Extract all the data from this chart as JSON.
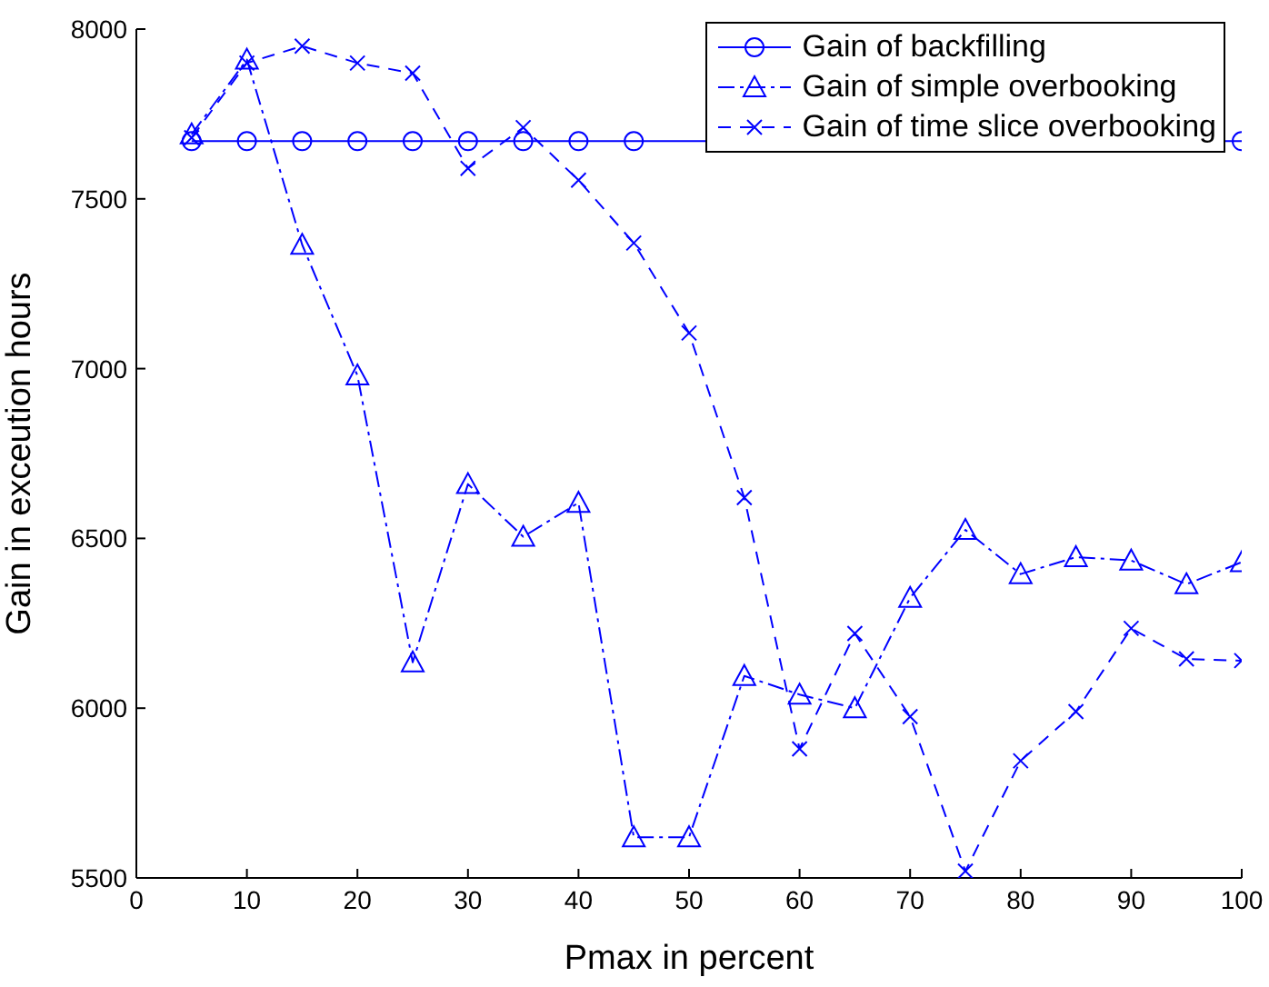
{
  "chart_data": {
    "type": "line",
    "xlabel": "Pmax in percent",
    "ylabel": "Gain in exceution hours",
    "x": [
      5,
      10,
      15,
      20,
      25,
      30,
      35,
      40,
      45,
      50,
      55,
      60,
      65,
      70,
      75,
      80,
      85,
      90,
      95,
      100
    ],
    "xlim": [
      0,
      100
    ],
    "xticks": [
      0,
      10,
      20,
      30,
      40,
      50,
      60,
      70,
      80,
      90,
      100
    ],
    "ylim": [
      5500,
      8000
    ],
    "yticks": [
      5500,
      6000,
      6500,
      7000,
      7500,
      8000
    ],
    "grid": false,
    "legend": "top right",
    "series": [
      {
        "name": "Gain of backfilling",
        "color": "#0000ff",
        "marker": "circle",
        "line_style": "solid",
        "values": [
          7670,
          7670,
          7670,
          7670,
          7670,
          7670,
          7670,
          7670,
          7670,
          null,
          null,
          null,
          null,
          null,
          null,
          null,
          null,
          null,
          null,
          7670
        ]
      },
      {
        "name": "Gain of simple overbooking",
        "color": "#0000ff",
        "marker": "triangle",
        "line_style": "dashdot",
        "values": [
          7690,
          7910,
          7365,
          6980,
          6135,
          6660,
          6505,
          6605,
          5620,
          5620,
          6095,
          6040,
          6000,
          6325,
          6525,
          6395,
          6445,
          6435,
          6365,
          6430
        ]
      },
      {
        "name": "Gain of time slice overbooking",
        "color": "#0000ff",
        "marker": "cross",
        "line_style": "dashed",
        "values": [
          7680,
          7900,
          7950,
          7900,
          7870,
          7590,
          7710,
          7555,
          7370,
          7105,
          6620,
          5880,
          6220,
          5975,
          5520,
          5845,
          5990,
          6235,
          6145,
          6140
        ]
      }
    ]
  }
}
